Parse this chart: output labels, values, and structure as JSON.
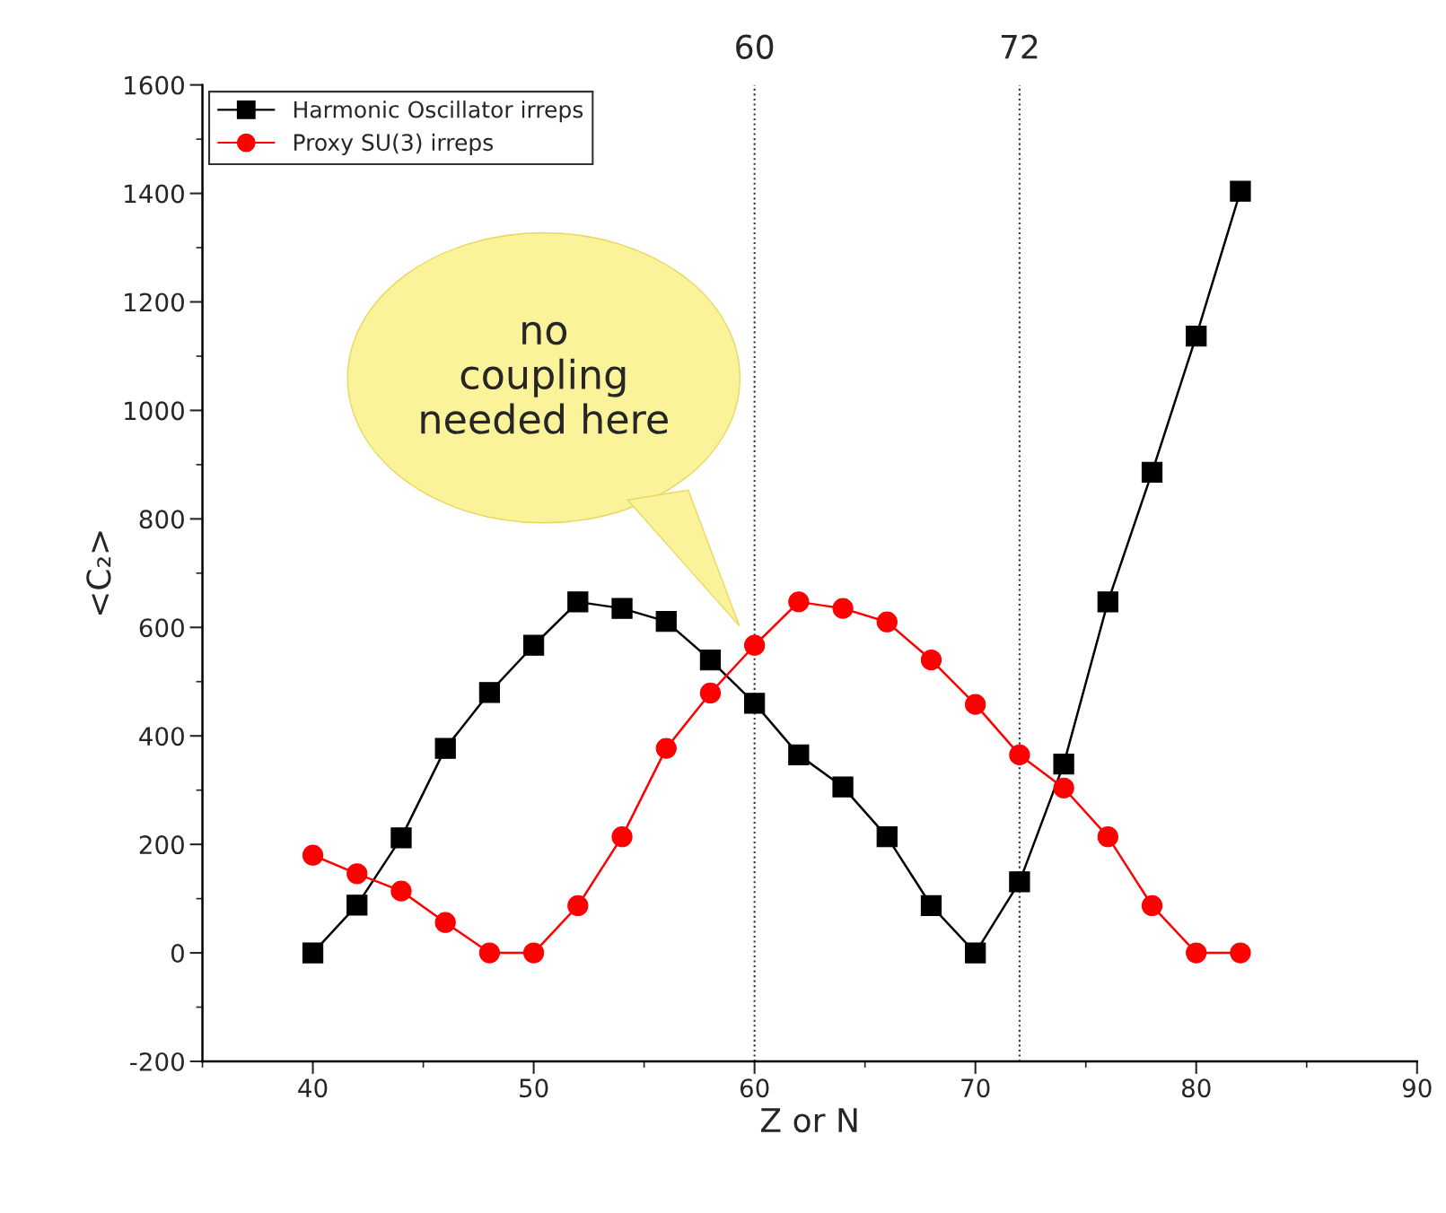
{
  "chart_data": {
    "type": "line",
    "xlabel": "Z or N",
    "ylabel": "<C₂>",
    "x": [
      40,
      42,
      44,
      46,
      48,
      50,
      52,
      54,
      56,
      58,
      60,
      62,
      64,
      66,
      68,
      70,
      72,
      74,
      76,
      78,
      80,
      82
    ],
    "series": [
      {
        "name": "Harmonic Oscillator irreps",
        "color": "#000000",
        "marker": "square",
        "values": [
          0,
          88,
          212,
          377,
          480,
          567,
          647,
          635,
          611,
          540,
          460,
          365,
          306,
          214,
          87,
          0,
          131,
          348,
          647,
          886,
          1137,
          1404
        ]
      },
      {
        "name": "Proxy SU(3) irreps",
        "color": "#ff0000",
        "marker": "circle",
        "values": [
          180,
          146,
          114,
          56,
          0,
          0,
          87,
          214,
          377,
          479,
          567,
          647,
          635,
          610,
          540,
          458,
          365,
          304,
          214,
          87,
          0,
          0
        ]
      }
    ],
    "xlim": [
      35,
      90
    ],
    "xticks": [
      40,
      50,
      60,
      70,
      80,
      90
    ],
    "ylim": [
      -200,
      1600
    ],
    "yticks": [
      -200,
      0,
      200,
      400,
      600,
      800,
      1000,
      1200,
      1400,
      1600
    ],
    "ref_lines": [
      {
        "axis": "x",
        "value": 60,
        "label": "60",
        "line_style": "dotted"
      },
      {
        "axis": "x",
        "value": 72,
        "label": "72",
        "line_style": "dotted"
      }
    ],
    "annotations": [
      "no\ncoupling\nneeded here"
    ],
    "legend": "top left",
    "grid": false,
    "line_style": "solid"
  }
}
